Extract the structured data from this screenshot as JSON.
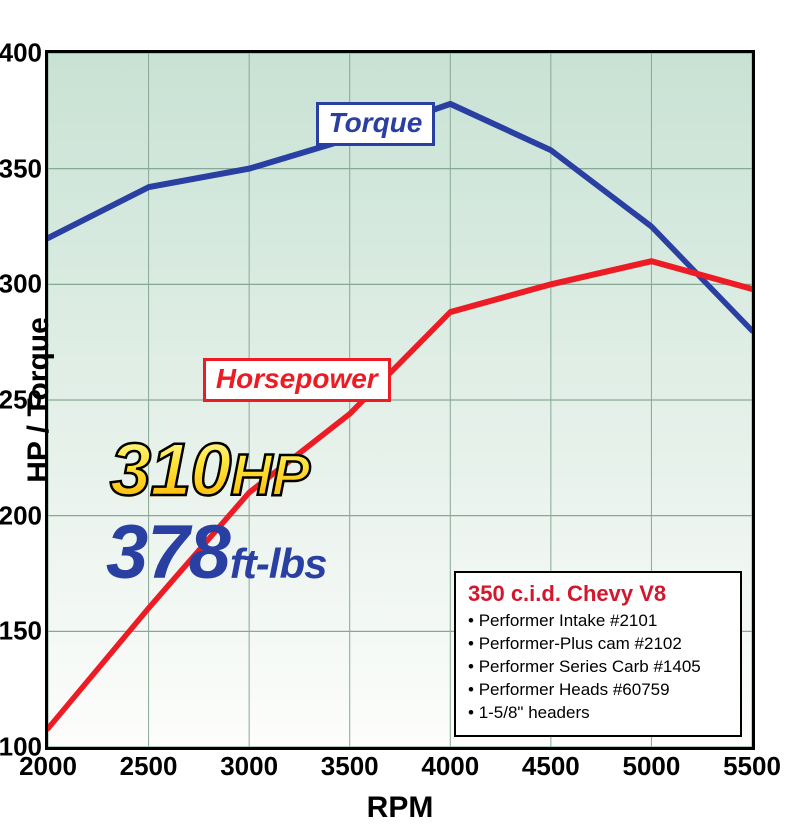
{
  "chart": {
    "type": "line",
    "background_gradient": [
      "#c8e2d4",
      "#e8f2ec",
      "#fdfdfc"
    ],
    "border_color": "#000000",
    "border_width": 3,
    "x": {
      "label": "RPM",
      "min": 2000,
      "max": 5500,
      "ticks": [
        2000,
        2500,
        3000,
        3500,
        4000,
        4500,
        5000,
        5500
      ],
      "tick_fontsize": 26,
      "label_fontsize": 30
    },
    "y": {
      "label": "HP / Torque",
      "min": 100,
      "max": 400,
      "ticks": [
        100,
        150,
        200,
        250,
        300,
        350,
        400
      ],
      "tick_fontsize": 26,
      "label_fontsize": 30
    },
    "grid_color": "#88a896",
    "series": {
      "torque": {
        "label": "Torque",
        "color": "#2a3fa2",
        "line_width": 5,
        "label_box": {
          "x_pct": 38,
          "y_pct": 7,
          "border_color": "#2a3fa2",
          "text_color": "#2a3fa2"
        },
        "points": [
          {
            "x": 2000,
            "y": 320
          },
          {
            "x": 2500,
            "y": 342
          },
          {
            "x": 3000,
            "y": 350
          },
          {
            "x": 3500,
            "y": 363
          },
          {
            "x": 4000,
            "y": 378
          },
          {
            "x": 4500,
            "y": 358
          },
          {
            "x": 5000,
            "y": 325
          },
          {
            "x": 5500,
            "y": 280
          }
        ]
      },
      "horsepower": {
        "label": "Horsepower",
        "color": "#ed1c24",
        "line_width": 5,
        "label_box": {
          "x_pct": 22,
          "y_pct": 44,
          "border_color": "#ed1c24",
          "text_color": "#ed1c24"
        },
        "points": [
          {
            "x": 2000,
            "y": 108
          },
          {
            "x": 2500,
            "y": 160
          },
          {
            "x": 3000,
            "y": 210
          },
          {
            "x": 3500,
            "y": 244
          },
          {
            "x": 4000,
            "y": 288
          },
          {
            "x": 4500,
            "y": 300
          },
          {
            "x": 5000,
            "y": 310
          },
          {
            "x": 5500,
            "y": 298
          }
        ]
      }
    }
  },
  "callouts": {
    "hp": {
      "value": "310",
      "unit": "HP",
      "gradient": [
        "#fff89a",
        "#ffe43a",
        "#ffb300"
      ],
      "stroke": "#000000"
    },
    "tq": {
      "value": "378",
      "unit": "ft-lbs",
      "color": "#2a3fa2"
    }
  },
  "specs": {
    "title": "350 c.i.d. Chevy V8",
    "title_color": "#d3172d",
    "items": [
      "Performer Intake #2101",
      "Performer-Plus cam #2102",
      "Performer Series Carb #1405",
      "Performer Heads #60759",
      "1-5/8\" headers"
    ],
    "border_color": "#000000",
    "background": "#ffffff"
  }
}
